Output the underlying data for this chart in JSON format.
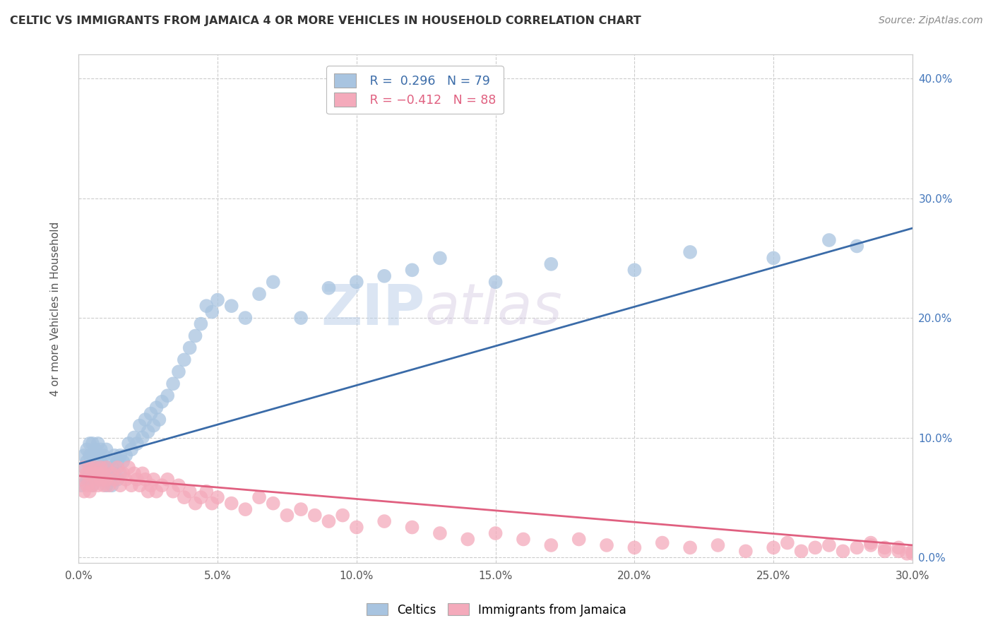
{
  "title": "CELTIC VS IMMIGRANTS FROM JAMAICA 4 OR MORE VEHICLES IN HOUSEHOLD CORRELATION CHART",
  "source": "Source: ZipAtlas.com",
  "ylabel": "4 or more Vehicles in Household",
  "xmin": 0.0,
  "xmax": 0.3,
  "ymin": -0.005,
  "ymax": 0.42,
  "xticks": [
    0.0,
    0.05,
    0.1,
    0.15,
    0.2,
    0.25,
    0.3
  ],
  "yticks": [
    0.0,
    0.1,
    0.2,
    0.3,
    0.4
  ],
  "xtick_labels": [
    "0.0%",
    "5.0%",
    "10.0%",
    "15.0%",
    "20.0%",
    "25.0%",
    "30.0%"
  ],
  "ytick_labels": [
    "0.0%",
    "10.0%",
    "20.0%",
    "30.0%",
    "40.0%"
  ],
  "celtics_color": "#A8C4E0",
  "jamaica_color": "#F4AABB",
  "celtics_line_color": "#3A6BA8",
  "jamaica_line_color": "#E06080",
  "celtics_R": 0.296,
  "celtics_N": 79,
  "jamaica_R": -0.412,
  "jamaica_N": 88,
  "legend_label_celtics": "Celtics",
  "legend_label_jamaica": "Immigrants from Jamaica",
  "watermark_zip": "ZIP",
  "watermark_atlas": "atlas",
  "background_color": "#ffffff",
  "celtics_x": [
    0.001,
    0.002,
    0.002,
    0.003,
    0.003,
    0.003,
    0.004,
    0.004,
    0.004,
    0.005,
    0.005,
    0.005,
    0.005,
    0.006,
    0.006,
    0.006,
    0.007,
    0.007,
    0.007,
    0.008,
    0.008,
    0.008,
    0.009,
    0.009,
    0.01,
    0.01,
    0.01,
    0.011,
    0.011,
    0.012,
    0.012,
    0.013,
    0.013,
    0.014,
    0.014,
    0.015,
    0.015,
    0.016,
    0.017,
    0.018,
    0.019,
    0.02,
    0.021,
    0.022,
    0.023,
    0.024,
    0.025,
    0.026,
    0.027,
    0.028,
    0.029,
    0.03,
    0.032,
    0.034,
    0.036,
    0.038,
    0.04,
    0.042,
    0.044,
    0.046,
    0.048,
    0.05,
    0.055,
    0.06,
    0.065,
    0.07,
    0.08,
    0.09,
    0.1,
    0.11,
    0.12,
    0.13,
    0.15,
    0.17,
    0.2,
    0.22,
    0.25,
    0.27,
    0.28
  ],
  "celtics_y": [
    0.06,
    0.075,
    0.085,
    0.065,
    0.08,
    0.09,
    0.07,
    0.085,
    0.095,
    0.06,
    0.075,
    0.085,
    0.095,
    0.065,
    0.08,
    0.09,
    0.07,
    0.085,
    0.095,
    0.065,
    0.08,
    0.09,
    0.07,
    0.085,
    0.06,
    0.075,
    0.09,
    0.065,
    0.08,
    0.06,
    0.075,
    0.07,
    0.085,
    0.065,
    0.08,
    0.07,
    0.085,
    0.08,
    0.085,
    0.095,
    0.09,
    0.1,
    0.095,
    0.11,
    0.1,
    0.115,
    0.105,
    0.12,
    0.11,
    0.125,
    0.115,
    0.13,
    0.135,
    0.145,
    0.155,
    0.165,
    0.175,
    0.185,
    0.195,
    0.21,
    0.205,
    0.215,
    0.21,
    0.2,
    0.22,
    0.23,
    0.2,
    0.225,
    0.23,
    0.235,
    0.24,
    0.25,
    0.23,
    0.245,
    0.24,
    0.255,
    0.25,
    0.265,
    0.26
  ],
  "jamaica_x": [
    0.001,
    0.002,
    0.002,
    0.003,
    0.003,
    0.004,
    0.004,
    0.005,
    0.005,
    0.006,
    0.006,
    0.007,
    0.007,
    0.008,
    0.008,
    0.009,
    0.009,
    0.01,
    0.01,
    0.011,
    0.012,
    0.013,
    0.014,
    0.015,
    0.016,
    0.017,
    0.018,
    0.019,
    0.02,
    0.021,
    0.022,
    0.023,
    0.024,
    0.025,
    0.026,
    0.027,
    0.028,
    0.03,
    0.032,
    0.034,
    0.036,
    0.038,
    0.04,
    0.042,
    0.044,
    0.046,
    0.048,
    0.05,
    0.055,
    0.06,
    0.065,
    0.07,
    0.075,
    0.08,
    0.085,
    0.09,
    0.095,
    0.1,
    0.11,
    0.12,
    0.13,
    0.14,
    0.15,
    0.16,
    0.17,
    0.18,
    0.19,
    0.2,
    0.21,
    0.22,
    0.23,
    0.24,
    0.25,
    0.255,
    0.26,
    0.265,
    0.27,
    0.275,
    0.28,
    0.285,
    0.29,
    0.295,
    0.298,
    0.3,
    0.285,
    0.29,
    0.295,
    0.3
  ],
  "jamaica_y": [
    0.065,
    0.075,
    0.055,
    0.07,
    0.06,
    0.075,
    0.055,
    0.07,
    0.06,
    0.065,
    0.075,
    0.06,
    0.07,
    0.065,
    0.075,
    0.06,
    0.07,
    0.065,
    0.075,
    0.06,
    0.07,
    0.065,
    0.075,
    0.06,
    0.07,
    0.065,
    0.075,
    0.06,
    0.07,
    0.065,
    0.06,
    0.07,
    0.065,
    0.055,
    0.06,
    0.065,
    0.055,
    0.06,
    0.065,
    0.055,
    0.06,
    0.05,
    0.055,
    0.045,
    0.05,
    0.055,
    0.045,
    0.05,
    0.045,
    0.04,
    0.05,
    0.045,
    0.035,
    0.04,
    0.035,
    0.03,
    0.035,
    0.025,
    0.03,
    0.025,
    0.02,
    0.015,
    0.02,
    0.015,
    0.01,
    0.015,
    0.01,
    0.008,
    0.012,
    0.008,
    0.01,
    0.005,
    0.008,
    0.012,
    0.005,
    0.008,
    0.01,
    0.005,
    0.008,
    0.01,
    0.005,
    0.008,
    0.003,
    0.005,
    0.012,
    0.008,
    0.005,
    0.003
  ]
}
